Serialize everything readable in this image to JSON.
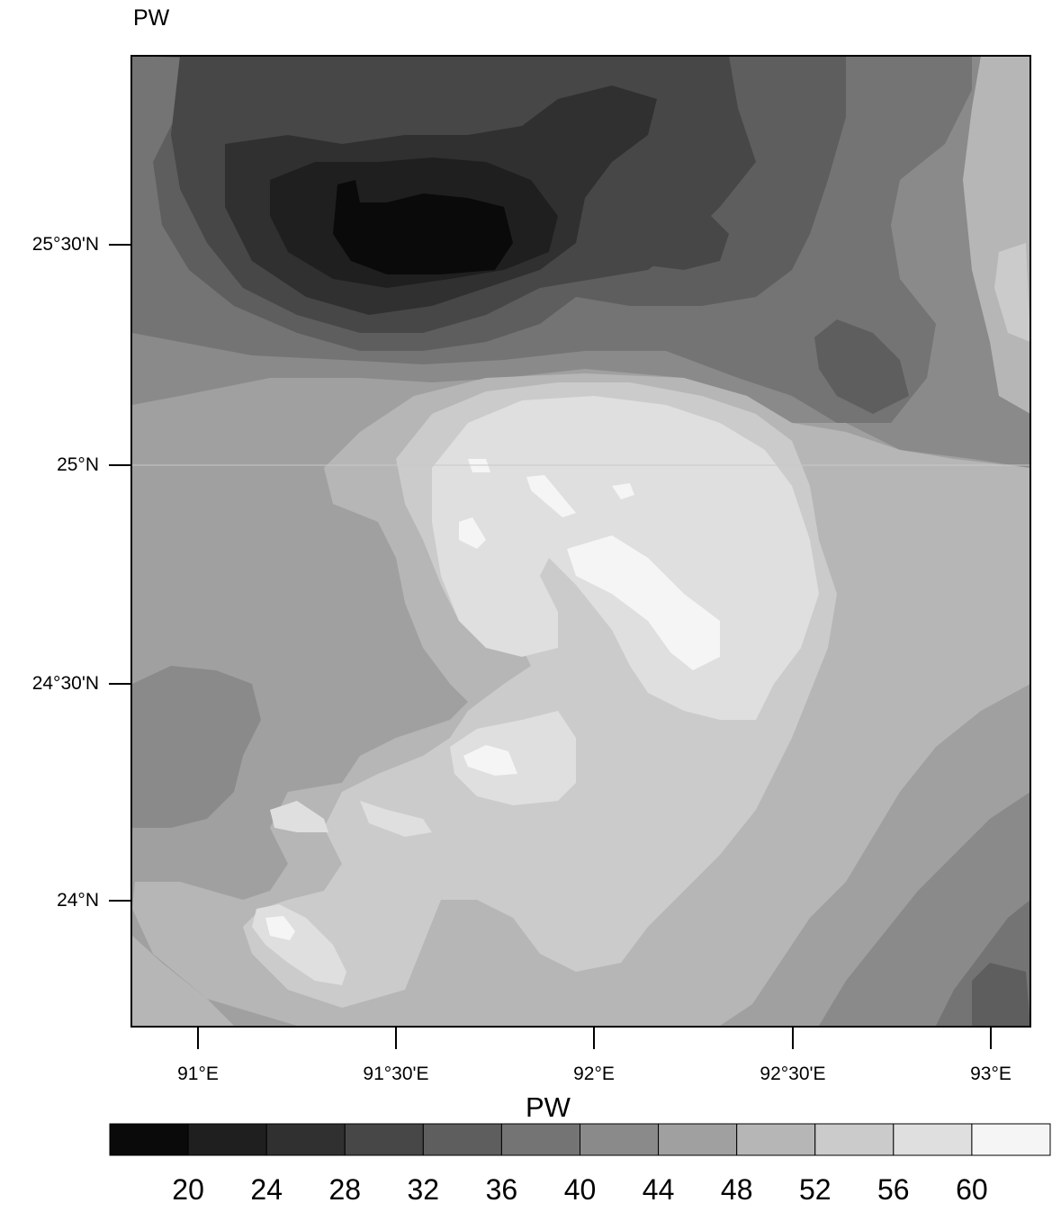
{
  "plot_title": "PW",
  "map": {
    "lat_ticks": [
      "25°30'N",
      "25°N",
      "24°30'N",
      "24°N"
    ],
    "lon_ticks": [
      "91°E",
      "91°30'E",
      "92°E",
      "92°30'E",
      "93°E"
    ],
    "extent": {
      "lon_min": 90.83,
      "lon_max": 93.1,
      "lat_min": 23.84,
      "lat_max": 25.93
    }
  },
  "colorbar": {
    "title": "PW",
    "tick_labels": [
      "20",
      "24",
      "28",
      "32",
      "36",
      "40",
      "44",
      "48",
      "52",
      "56",
      "60"
    ],
    "colors": [
      "#0a0a0a",
      "#1f1f1f",
      "#303030",
      "#474747",
      "#5e5e5e",
      "#747474",
      "#8a8a8a",
      "#a0a0a0",
      "#b6b6b6",
      "#cbcbcb",
      "#dfdfdf",
      "#f5f5f5"
    ]
  },
  "chart_data": {
    "type": "heatmap",
    "title": "PW",
    "legend_title": "PW",
    "levels": [
      20,
      24,
      28,
      32,
      36,
      40,
      44,
      48,
      52,
      56,
      60
    ],
    "x_ticks": [
      "91°E",
      "91°30'E",
      "92°E",
      "92°30'E",
      "93°E"
    ],
    "y_ticks": [
      "25°30'N",
      "25°N",
      "24°30'N",
      "24°N"
    ],
    "xlim": [
      90.83,
      93.1
    ],
    "ylim": [
      23.84,
      25.93
    ]
  }
}
